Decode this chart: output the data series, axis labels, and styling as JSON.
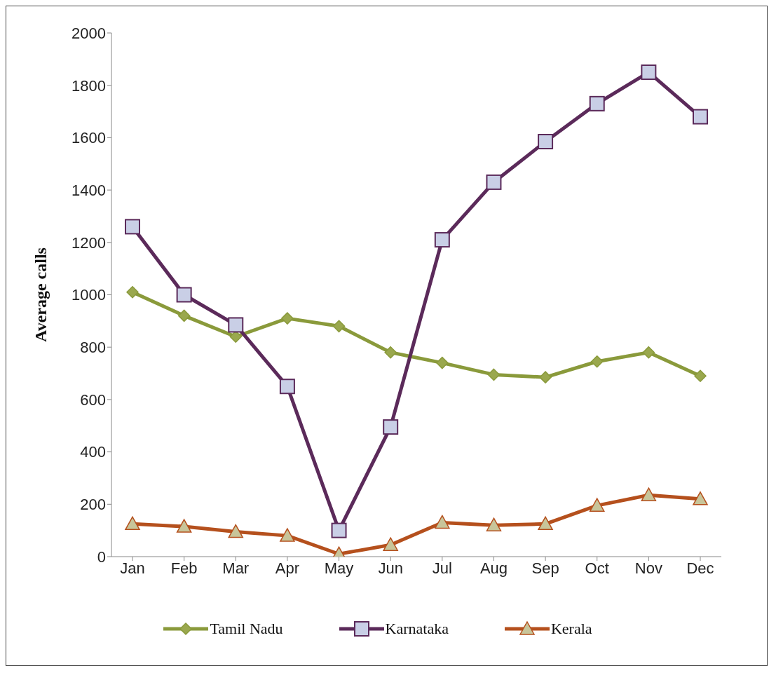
{
  "chart_data": {
    "type": "line",
    "ylabel": "Average calls",
    "categories": [
      "Jan",
      "Feb",
      "Mar",
      "Apr",
      "May",
      "Jun",
      "Jul",
      "Aug",
      "Sep",
      "Oct",
      "Nov",
      "Dec"
    ],
    "series": [
      {
        "name": "Tamil Nadu",
        "color": "#8a9a3b",
        "marker": "diamond",
        "values": [
          1010,
          920,
          840,
          910,
          880,
          780,
          740,
          695,
          685,
          745,
          780,
          690
        ]
      },
      {
        "name": "Karnataka",
        "color": "#5b2a5a",
        "marker": "square",
        "values": [
          1260,
          1000,
          885,
          650,
          100,
          495,
          1210,
          1430,
          1585,
          1730,
          1850,
          1680
        ]
      },
      {
        "name": "Kerala",
        "color": "#b5501d",
        "marker": "triangle",
        "values": [
          125,
          115,
          95,
          80,
          10,
          45,
          130,
          120,
          125,
          195,
          235,
          220
        ]
      }
    ],
    "ylim": [
      0,
      2000
    ],
    "yticks": [
      0,
      200,
      400,
      600,
      800,
      1000,
      1200,
      1400,
      1600,
      1800,
      2000
    ],
    "grid": false,
    "legend": "bottom"
  }
}
